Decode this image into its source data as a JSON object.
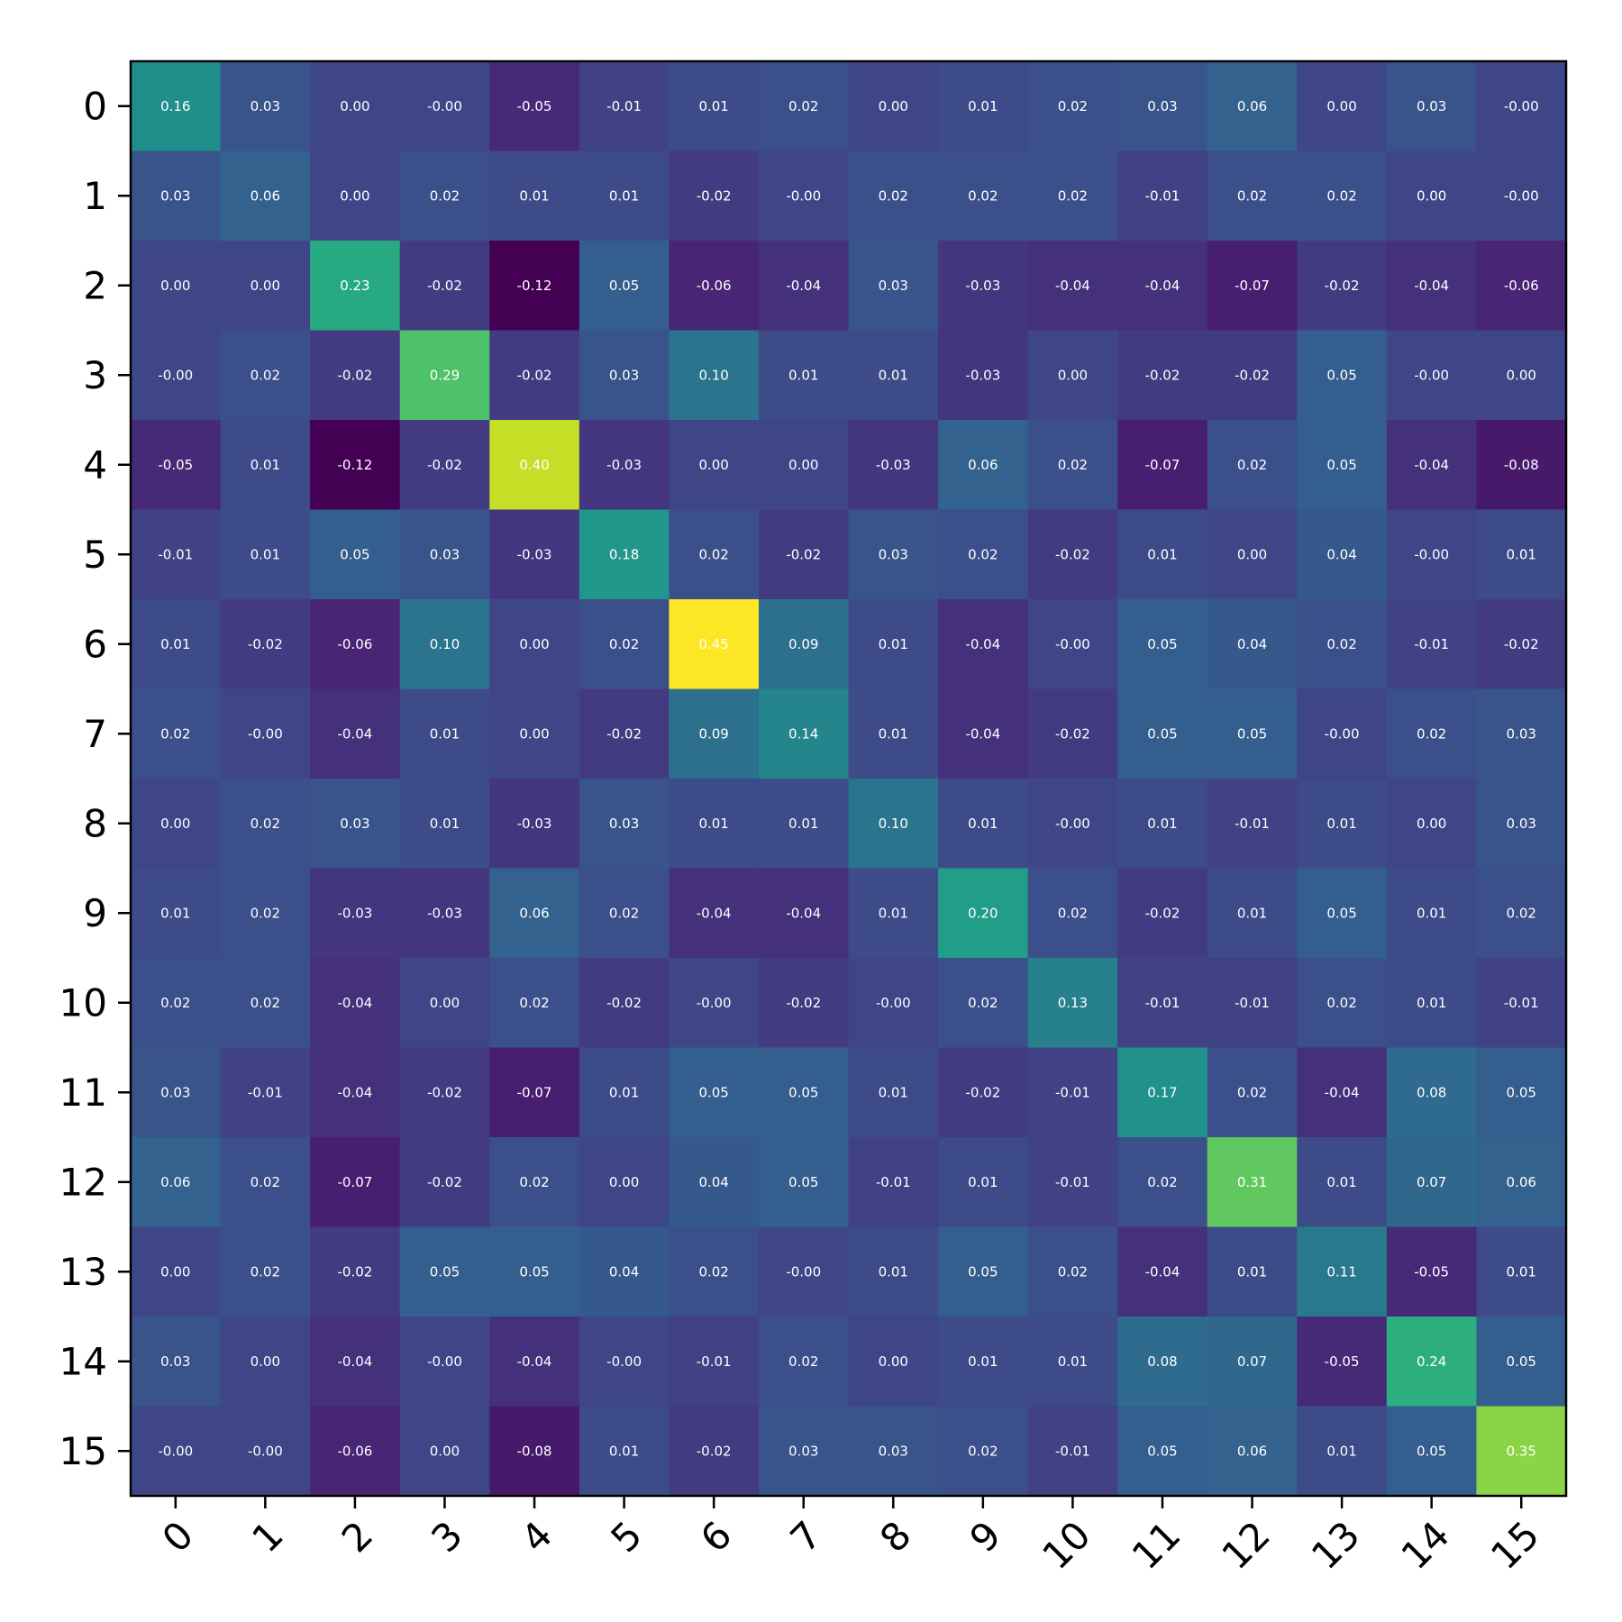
{
  "chart_data": {
    "type": "heatmap",
    "title": "",
    "xlabel": "",
    "ylabel": "",
    "x_ticks": [
      "0",
      "1",
      "2",
      "3",
      "4",
      "5",
      "6",
      "7",
      "8",
      "9",
      "10",
      "11",
      "12",
      "13",
      "14",
      "15"
    ],
    "y_ticks": [
      "0",
      "1",
      "2",
      "3",
      "4",
      "5",
      "6",
      "7",
      "8",
      "9",
      "10",
      "11",
      "12",
      "13",
      "14",
      "15"
    ],
    "colormap": "viridis",
    "value_range": [
      -0.12,
      0.45
    ],
    "value_format": "2 decimals",
    "grid": false,
    "matrix": [
      [
        0.16,
        0.03,
        0.0,
        -0.0,
        -0.05,
        -0.01,
        0.01,
        0.02,
        0.0,
        0.01,
        0.02,
        0.03,
        0.06,
        0.0,
        0.03,
        -0.0
      ],
      [
        0.03,
        0.06,
        0.0,
        0.02,
        0.01,
        0.01,
        -0.02,
        -0.0,
        0.02,
        0.02,
        0.02,
        -0.01,
        0.02,
        0.02,
        0.0,
        -0.0
      ],
      [
        0.0,
        0.0,
        0.23,
        -0.02,
        -0.12,
        0.05,
        -0.06,
        -0.04,
        0.03,
        -0.03,
        -0.04,
        -0.04,
        -0.07,
        -0.02,
        -0.04,
        -0.06
      ],
      [
        -0.0,
        0.02,
        -0.02,
        0.29,
        -0.02,
        0.03,
        0.1,
        0.01,
        0.01,
        -0.03,
        0.0,
        -0.02,
        -0.02,
        0.05,
        -0.0,
        0.0
      ],
      [
        -0.05,
        0.01,
        -0.12,
        -0.02,
        0.4,
        -0.03,
        0.0,
        0.0,
        -0.03,
        0.06,
        0.02,
        -0.07,
        0.02,
        0.05,
        -0.04,
        -0.08
      ],
      [
        -0.01,
        0.01,
        0.05,
        0.03,
        -0.03,
        0.18,
        0.02,
        -0.02,
        0.03,
        0.02,
        -0.02,
        0.01,
        0.0,
        0.04,
        -0.0,
        0.01
      ],
      [
        0.01,
        -0.02,
        -0.06,
        0.1,
        0.0,
        0.02,
        0.45,
        0.09,
        0.01,
        -0.04,
        -0.0,
        0.05,
        0.04,
        0.02,
        -0.01,
        -0.02
      ],
      [
        0.02,
        -0.0,
        -0.04,
        0.01,
        0.0,
        -0.02,
        0.09,
        0.14,
        0.01,
        -0.04,
        -0.02,
        0.05,
        0.05,
        -0.0,
        0.02,
        0.03
      ],
      [
        0.0,
        0.02,
        0.03,
        0.01,
        -0.03,
        0.03,
        0.01,
        0.01,
        0.1,
        0.01,
        -0.0,
        0.01,
        -0.01,
        0.01,
        0.0,
        0.03
      ],
      [
        0.01,
        0.02,
        -0.03,
        -0.03,
        0.06,
        0.02,
        -0.04,
        -0.04,
        0.01,
        0.2,
        0.02,
        -0.02,
        0.01,
        0.05,
        0.01,
        0.02
      ],
      [
        0.02,
        0.02,
        -0.04,
        0.0,
        0.02,
        -0.02,
        -0.0,
        -0.02,
        -0.0,
        0.02,
        0.13,
        -0.01,
        -0.01,
        0.02,
        0.01,
        -0.01
      ],
      [
        0.03,
        -0.01,
        -0.04,
        -0.02,
        -0.07,
        0.01,
        0.05,
        0.05,
        0.01,
        -0.02,
        -0.01,
        0.17,
        0.02,
        -0.04,
        0.08,
        0.05
      ],
      [
        0.06,
        0.02,
        -0.07,
        -0.02,
        0.02,
        0.0,
        0.04,
        0.05,
        -0.01,
        0.01,
        -0.01,
        0.02,
        0.31,
        0.01,
        0.07,
        0.06
      ],
      [
        0.0,
        0.02,
        -0.02,
        0.05,
        0.05,
        0.04,
        0.02,
        -0.0,
        0.01,
        0.05,
        0.02,
        -0.04,
        0.01,
        0.11,
        -0.05,
        0.01
      ],
      [
        0.03,
        0.0,
        -0.04,
        -0.0,
        -0.04,
        -0.0,
        -0.01,
        0.02,
        0.0,
        0.01,
        0.01,
        0.08,
        0.07,
        -0.05,
        0.24,
        0.05
      ],
      [
        -0.0,
        -0.0,
        -0.06,
        0.0,
        -0.08,
        0.01,
        -0.02,
        0.03,
        0.03,
        0.02,
        -0.01,
        0.05,
        0.06,
        0.01,
        0.05,
        0.35
      ]
    ]
  }
}
